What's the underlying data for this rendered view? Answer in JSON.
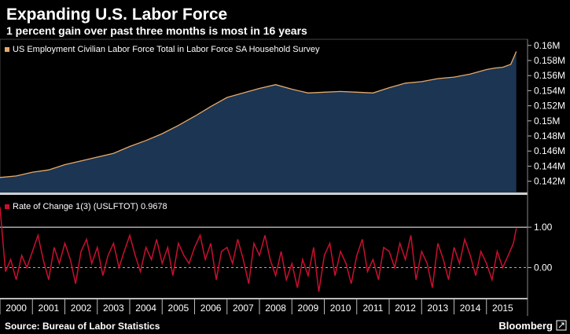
{
  "header": {
    "title": "Expanding U.S. Labor Force",
    "subtitle": "1 percent gain over past three months is most in 16 years"
  },
  "footer": {
    "source": "Source: Bureau of Labor Statistics",
    "brand": "Bloomberg"
  },
  "colors": {
    "background": "#000000",
    "area_fill": "#1b3553",
    "level_line": "#e6a96a",
    "roc_line": "#c8102e",
    "reference_line": "#ffffff",
    "zero_line": "#aaaaaa"
  },
  "chart_data": [
    {
      "type": "area",
      "legend": "US Employment Civilian Labor Force Total in Labor Force SA Household Survey",
      "legend_placement": "top-left",
      "ylim": [
        0.1405,
        0.1605
      ],
      "yticks": [
        "0.142M",
        "0.144M",
        "0.146M",
        "0.148M",
        "0.15M",
        "0.152M",
        "0.154M",
        "0.156M",
        "0.158M",
        "0.16M"
      ],
      "xlim": [
        2000.0,
        2016.0
      ],
      "x": [
        2000.0,
        2000.5,
        2001.0,
        2001.5,
        2002.0,
        2002.5,
        2003.0,
        2003.5,
        2004.0,
        2004.5,
        2005.0,
        2005.5,
        2006.0,
        2006.5,
        2007.0,
        2007.5,
        2008.0,
        2008.5,
        2009.0,
        2009.5,
        2010.0,
        2010.5,
        2011.0,
        2011.5,
        2012.0,
        2012.5,
        2013.0,
        2013.5,
        2014.0,
        2014.5,
        2015.0,
        2015.25,
        2015.5,
        2015.75,
        2015.92
      ],
      "values": [
        0.1425,
        0.1427,
        0.1432,
        0.1435,
        0.1442,
        0.1447,
        0.1452,
        0.1457,
        0.1466,
        0.1474,
        0.1483,
        0.1494,
        0.1506,
        0.1519,
        0.1531,
        0.1537,
        0.1543,
        0.1548,
        0.1542,
        0.1537,
        0.1538,
        0.1539,
        0.1538,
        0.1537,
        0.1544,
        0.155,
        0.1552,
        0.1556,
        0.1558,
        0.1562,
        0.1568,
        0.157,
        0.1571,
        0.1575,
        0.1592
      ]
    },
    {
      "type": "line",
      "legend": "Rate of Change 1(3) (USLFTOT) 0.9678",
      "legend_placement": "top-left",
      "ylim": [
        -0.75,
        1.8
      ],
      "yticks": [
        "1.00",
        "0.00"
      ],
      "reference_line": 1.0,
      "xlim": [
        2000.0,
        2016.0
      ],
      "x": [
        2000.0,
        2000.17,
        2000.33,
        2000.5,
        2000.67,
        2000.83,
        2001.0,
        2001.17,
        2001.33,
        2001.5,
        2001.67,
        2001.83,
        2002.0,
        2002.17,
        2002.33,
        2002.5,
        2002.67,
        2002.83,
        2003.0,
        2003.17,
        2003.33,
        2003.5,
        2003.67,
        2003.83,
        2004.0,
        2004.17,
        2004.33,
        2004.5,
        2004.67,
        2004.83,
        2005.0,
        2005.17,
        2005.33,
        2005.5,
        2005.67,
        2005.83,
        2006.0,
        2006.17,
        2006.33,
        2006.5,
        2006.67,
        2006.83,
        2007.0,
        2007.17,
        2007.33,
        2007.5,
        2007.67,
        2007.83,
        2008.0,
        2008.17,
        2008.33,
        2008.5,
        2008.67,
        2008.83,
        2009.0,
        2009.17,
        2009.33,
        2009.5,
        2009.67,
        2009.83,
        2010.0,
        2010.17,
        2010.33,
        2010.5,
        2010.67,
        2010.83,
        2011.0,
        2011.17,
        2011.33,
        2011.5,
        2011.67,
        2011.83,
        2012.0,
        2012.17,
        2012.33,
        2012.5,
        2012.67,
        2012.83,
        2013.0,
        2013.17,
        2013.33,
        2013.5,
        2013.67,
        2013.83,
        2014.0,
        2014.17,
        2014.33,
        2014.5,
        2014.67,
        2014.83,
        2015.0,
        2015.17,
        2015.33,
        2015.5,
        2015.67,
        2015.83,
        2015.92
      ],
      "values": [
        1.5,
        -0.1,
        0.2,
        -0.3,
        0.3,
        0.0,
        0.4,
        0.8,
        0.2,
        -0.3,
        0.5,
        0.1,
        0.6,
        0.2,
        -0.4,
        0.4,
        0.7,
        0.1,
        0.5,
        -0.2,
        0.3,
        0.6,
        0.0,
        0.4,
        0.8,
        0.3,
        -0.1,
        0.5,
        0.2,
        0.7,
        0.1,
        0.5,
        -0.2,
        0.6,
        0.3,
        0.1,
        0.5,
        0.8,
        0.2,
        0.6,
        -0.3,
        0.4,
        0.5,
        0.1,
        0.7,
        0.2,
        -0.4,
        0.6,
        0.3,
        0.8,
        0.2,
        -0.2,
        0.4,
        -0.3,
        0.1,
        -0.5,
        0.2,
        -0.2,
        0.5,
        -0.6,
        0.3,
        0.6,
        -0.2,
        0.4,
        0.1,
        -0.4,
        0.3,
        0.7,
        -0.1,
        0.2,
        -0.3,
        0.5,
        0.4,
        0.0,
        0.6,
        0.2,
        0.8,
        -0.3,
        0.4,
        0.1,
        -0.5,
        0.6,
        0.2,
        -0.3,
        0.5,
        0.1,
        0.7,
        0.3,
        -0.2,
        0.4,
        0.1,
        -0.3,
        0.4,
        0.0,
        0.3,
        0.6,
        0.97
      ]
    }
  ],
  "x_axis": {
    "labels": [
      "2000",
      "2001",
      "2002",
      "2003",
      "2004",
      "2005",
      "2006",
      "2007",
      "2008",
      "2009",
      "2010",
      "2011",
      "2012",
      "2013",
      "2014",
      "2015"
    ]
  }
}
